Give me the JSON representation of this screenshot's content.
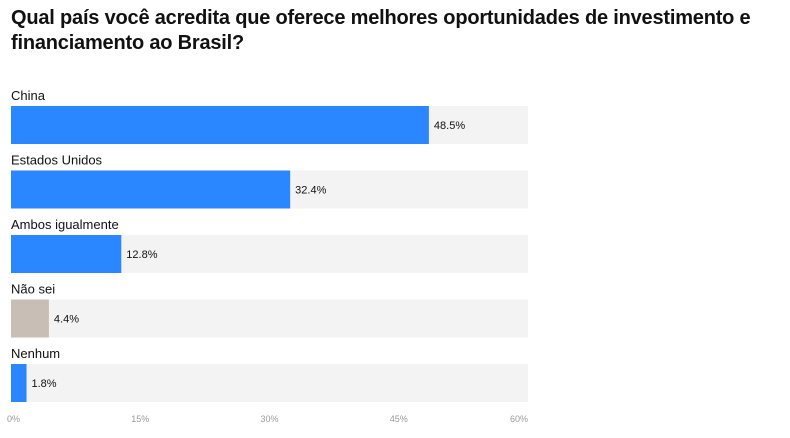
{
  "chart_data": {
    "type": "bar",
    "orientation": "horizontal",
    "title": "Qual país você acredita que oferece melhores oportunidades de investimento e financiamento ao Brasil?",
    "categories": [
      "China",
      "Estados Unidos",
      "Ambos igualmente",
      "Não sei",
      "Nenhum"
    ],
    "values": [
      48.5,
      32.4,
      12.8,
      4.4,
      1.8
    ],
    "value_labels": [
      "48.5%",
      "32.4%",
      "12.8%",
      "4.4%",
      "1.8%"
    ],
    "bar_colors": [
      "#2b87ff",
      "#2b87ff",
      "#2b87ff",
      "#c9beb5",
      "#2b87ff"
    ],
    "track_color": "#f3f3f3",
    "xlim": [
      0,
      60
    ],
    "xticks": [
      0,
      15,
      30,
      45,
      60
    ],
    "xtick_labels": [
      "0%",
      "15%",
      "30%",
      "45%",
      "60%"
    ],
    "xlabel": "",
    "ylabel": "",
    "grid": false,
    "legend": "none"
  }
}
